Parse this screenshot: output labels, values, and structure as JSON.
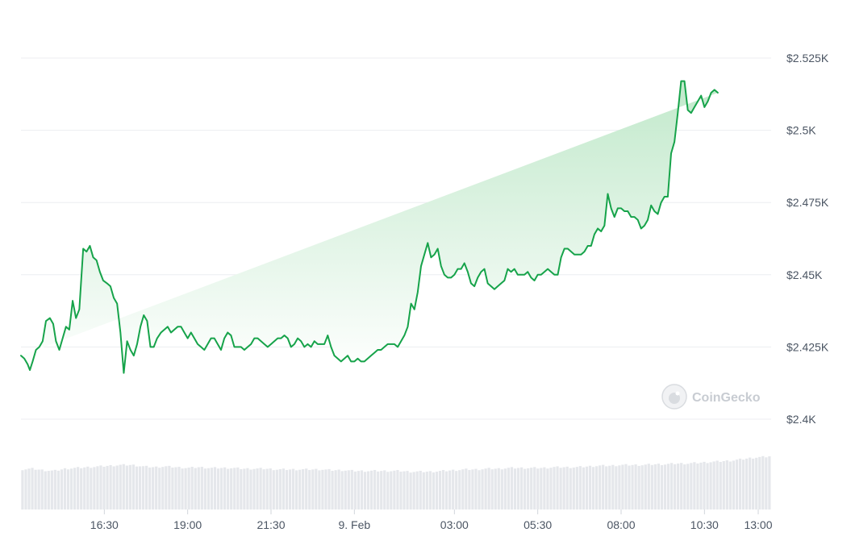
{
  "colors": {
    "line": "#16a34a",
    "area_top": "#bfe8c9",
    "area_bottom": "#ffffff",
    "grid": "#eceef1",
    "volume": "#e5e7eb",
    "text": "#4b5563",
    "watermark": "#c8ccd2"
  },
  "watermark": {
    "text": "CoinGecko",
    "icon": "coingecko-gecko-icon"
  },
  "chart_data": {
    "type": "area",
    "grid": true,
    "y_axis": {
      "position": "right",
      "ylim": [
        2400,
        2525
      ],
      "ticks": [
        {
          "value": 2525,
          "label": "$2.525K"
        },
        {
          "value": 2500,
          "label": "$2.5K"
        },
        {
          "value": 2475,
          "label": "$2.475K"
        },
        {
          "value": 2450,
          "label": "$2.45K"
        },
        {
          "value": 2425,
          "label": "$2.425K"
        },
        {
          "value": 2400,
          "label": "$2.4K"
        }
      ]
    },
    "x_axis": {
      "xlim": [
        0,
        1350
      ],
      "ticks": [
        {
          "t": 150,
          "label": "16:30"
        },
        {
          "t": 300,
          "label": "19:00"
        },
        {
          "t": 450,
          "label": "21:30"
        },
        {
          "t": 600,
          "label": "9. Feb"
        },
        {
          "t": 780,
          "label": "03:00"
        },
        {
          "t": 930,
          "label": "05:30"
        },
        {
          "t": 1080,
          "label": "08:00"
        },
        {
          "t": 1230,
          "label": "10:30"
        },
        {
          "t": 1380,
          "label": "13:00"
        }
      ]
    },
    "series": [
      {
        "t": [
          0,
          6,
          12,
          16,
          21,
          27,
          33,
          39,
          45,
          52,
          58,
          63,
          69,
          75,
          81,
          87,
          93,
          99,
          105,
          112,
          118,
          124,
          130,
          136,
          142,
          148,
          155,
          161,
          167,
          173,
          179,
          185,
          191,
          197,
          203,
          209,
          215,
          221,
          227,
          233,
          239,
          245,
          252,
          258,
          264,
          270,
          276,
          282,
          288,
          294,
          300,
          306,
          312,
          318,
          324,
          330,
          336,
          342,
          348,
          354,
          360,
          366,
          372,
          378,
          384,
          390,
          396,
          402,
          408,
          414,
          420,
          426,
          432,
          438,
          444,
          450,
          456,
          462,
          468,
          474,
          480,
          486,
          492,
          498,
          504,
          510,
          516,
          522,
          528,
          534,
          540,
          546,
          552,
          558,
          564,
          570,
          576,
          582,
          588,
          594,
          600,
          606,
          612,
          618,
          624,
          630,
          636,
          642,
          648,
          654,
          660,
          666,
          672,
          678,
          684,
          690,
          696,
          702,
          708,
          714,
          720,
          726,
          732,
          738,
          744,
          750,
          756,
          762,
          768,
          774,
          780,
          786,
          792,
          798,
          804,
          810,
          816,
          822,
          828,
          834,
          840,
          846,
          852,
          858,
          864,
          870,
          876,
          882,
          888,
          894,
          900,
          906,
          912,
          918,
          924,
          930,
          936,
          942,
          948,
          954,
          960,
          966,
          972,
          978,
          984,
          990,
          996,
          1002,
          1008,
          1014,
          1020,
          1026,
          1032,
          1038,
          1044,
          1050,
          1056,
          1062,
          1068,
          1074,
          1080,
          1086,
          1092,
          1098,
          1104,
          1110,
          1116,
          1122,
          1128,
          1134,
          1140,
          1146,
          1152,
          1158,
          1164,
          1170,
          1176,
          1182,
          1188,
          1194,
          1200,
          1206,
          1212,
          1218,
          1224,
          1230,
          1236,
          1242,
          1248,
          1254,
          1260,
          1266,
          1272,
          1278,
          1284,
          1290,
          1296,
          1302,
          1308,
          1314,
          1320,
          1326,
          1332,
          1338,
          1344,
          1350
        ],
        "price": [
          2422,
          2421,
          2419,
          2417,
          2420,
          2424,
          2425,
          2427,
          2434,
          2435,
          2433,
          2427,
          2424,
          2428,
          2432,
          2431,
          2441,
          2435,
          2438,
          2459,
          2458,
          2460,
          2456,
          2455,
          2451,
          2448,
          2447,
          2446,
          2442,
          2440,
          2430,
          2416,
          2427,
          2424,
          2422,
          2426,
          2432,
          2436,
          2434,
          2425,
          2425,
          2428,
          2430,
          2431,
          2432,
          2430,
          2431,
          2432,
          2432,
          2430,
          2428,
          2430,
          2428,
          2426,
          2425,
          2424,
          2426,
          2428,
          2428,
          2426,
          2424,
          2428,
          2430,
          2429,
          2425,
          2425,
          2425,
          2424,
          2425,
          2426,
          2428,
          2428,
          2427,
          2426,
          2425,
          2426,
          2427,
          2428,
          2428,
          2429,
          2428,
          2425,
          2426,
          2428,
          2427,
          2425,
          2426,
          2425,
          2427,
          2426,
          2426,
          2426,
          2429,
          2425,
          2422,
          2421,
          2420,
          2421,
          2422,
          2420,
          2420,
          2421,
          2420,
          2420,
          2421,
          2422,
          2423,
          2424,
          2424,
          2425,
          2426,
          2426,
          2426,
          2425,
          2427,
          2429,
          2432,
          2440,
          2438,
          2444,
          2453,
          2457,
          2461,
          2456,
          2457,
          2459,
          2453,
          2450,
          2449,
          2449,
          2450,
          2452,
          2452,
          2454,
          2451,
          2447,
          2446,
          2449,
          2451,
          2452,
          2447,
          2446,
          2445,
          2446,
          2447,
          2448,
          2452,
          2451,
          2452,
          2450,
          2450,
          2450,
          2451,
          2449,
          2448,
          2450,
          2450,
          2451,
          2452,
          2451,
          2450,
          2450,
          2456,
          2459,
          2459,
          2458,
          2457,
          2457,
          2457,
          2458,
          2460,
          2460,
          2464,
          2466,
          2465,
          2467,
          2478,
          2473,
          2470,
          2473,
          2473,
          2472,
          2472,
          2470,
          2470,
          2469,
          2466,
          2467,
          2469,
          2474,
          2472,
          2471,
          2475,
          2477,
          2477,
          2492,
          2496,
          2506,
          2517,
          2517,
          2507,
          2506,
          2508,
          2510,
          2512,
          2508,
          2510,
          2513,
          2514,
          2513
        ]
      }
    ],
    "volume": {
      "t": [
        0,
        20,
        40,
        60,
        80,
        100,
        120,
        140,
        160,
        180,
        200,
        220,
        240,
        260,
        280,
        300,
        320,
        340,
        360,
        380,
        400,
        420,
        440,
        460,
        480,
        500,
        520,
        540,
        560,
        580,
        600,
        620,
        640,
        660,
        680,
        700,
        720,
        740,
        760,
        780,
        800,
        820,
        840,
        860,
        880,
        900,
        920,
        940,
        960,
        980,
        1000,
        1020,
        1040,
        1060,
        1080,
        1100,
        1120,
        1140,
        1160,
        1180,
        1200,
        1220,
        1240,
        1260,
        1280,
        1300,
        1320,
        1340,
        1350
      ],
      "values": [
        0.54,
        0.55,
        0.53,
        0.52,
        0.55,
        0.56,
        0.57,
        0.58,
        0.59,
        0.6,
        0.6,
        0.58,
        0.57,
        0.58,
        0.57,
        0.56,
        0.57,
        0.56,
        0.56,
        0.56,
        0.55,
        0.55,
        0.55,
        0.54,
        0.54,
        0.54,
        0.54,
        0.54,
        0.53,
        0.53,
        0.52,
        0.52,
        0.52,
        0.52,
        0.52,
        0.51,
        0.51,
        0.51,
        0.52,
        0.53,
        0.54,
        0.54,
        0.55,
        0.55,
        0.56,
        0.56,
        0.56,
        0.56,
        0.57,
        0.57,
        0.57,
        0.58,
        0.59,
        0.59,
        0.6,
        0.6,
        0.6,
        0.61,
        0.61,
        0.62,
        0.62,
        0.63,
        0.64,
        0.65,
        0.66,
        0.68,
        0.7,
        0.71,
        0.72
      ]
    }
  }
}
